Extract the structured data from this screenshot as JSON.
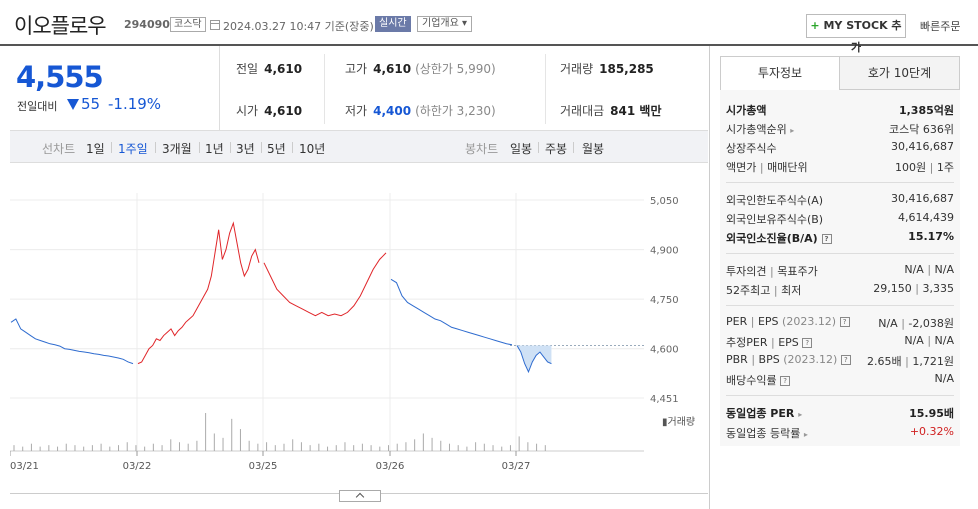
{
  "header": {
    "name": "이오플로우",
    "code": "294090",
    "market": "코스닥",
    "datetime": "2024.03.27 10:47 기준(장중)",
    "realtime": "실시간",
    "company_info": "기업개요 ▾",
    "mystock_plus": "+",
    "mystock_label": "MY STOCK 추가",
    "quick_order": "빠른주문"
  },
  "price": {
    "current": "4,555",
    "diff_label": "전일대비",
    "diff": "55",
    "rate": "-1.19%"
  },
  "info": {
    "prev_label": "전일",
    "prev": "4,610",
    "high_label": "고가",
    "high": "4,610",
    "upper": "(상한가 5,990)",
    "volume_label": "거래량",
    "volume": "185,285",
    "open_label": "시가",
    "open": "4,610",
    "low_label": "저가",
    "low": "4,400",
    "lower": "(하한가 3,230)",
    "amount_label": "거래대금",
    "amount": "841 백만"
  },
  "period_bar": {
    "line_chart": "선차트",
    "periods": [
      "1일",
      "1주일",
      "3개월",
      "1년",
      "3년",
      "5년",
      "10년"
    ],
    "active_period": "1주일",
    "candle_chart": "봉차트",
    "candles": [
      "일봉",
      "주봉",
      "월봉"
    ]
  },
  "chart_data": {
    "type": "line",
    "y_ticks": [
      "5,050",
      "4,900",
      "4,750",
      "4,600",
      "4,451"
    ],
    "ylim": [
      4451,
      5050
    ],
    "x_ticks": [
      "03/21",
      "03/22",
      "03/25",
      "03/26",
      "03/27"
    ],
    "reference_price": 4610,
    "volume_label": "거래량",
    "colors": {
      "up": "#e0262a",
      "down": "#2f6ccf",
      "fill": "#cfe1f5"
    },
    "series": [
      {
        "color": "down",
        "day": 0,
        "values": [
          4680,
          4690,
          4660,
          4650,
          4640,
          4630,
          4625,
          4620,
          4615,
          4612,
          4608,
          4600,
          4598,
          4595,
          4592,
          4590,
          4588,
          4585,
          4583,
          4580,
          4578,
          4575,
          4572,
          4568,
          4560,
          4555
        ]
      },
      {
        "color": "up",
        "day": 1,
        "values": [
          4555,
          4560,
          4580,
          4600,
          4610,
          4630,
          4625,
          4640,
          4650,
          4660,
          4640,
          4655,
          4665,
          4680,
          4690,
          4700,
          4720,
          4740,
          4760,
          4780,
          4820,
          4890,
          4960,
          4870,
          4900,
          4950,
          4980,
          4920,
          4860,
          4820,
          4840,
          4880,
          4900,
          4860
        ]
      },
      {
        "color": "up",
        "day": 2,
        "values": [
          4860,
          4820,
          4780,
          4760,
          4740,
          4730,
          4720,
          4710,
          4700,
          4710,
          4700,
          4705,
          4700,
          4710,
          4730,
          4760,
          4800,
          4840,
          4870,
          4890
        ]
      },
      {
        "color": "down",
        "day": 3,
        "values": [
          4810,
          4800,
          4760,
          4740,
          4730,
          4720,
          4710,
          4700,
          4690,
          4685,
          4675,
          4665,
          4660,
          4655,
          4650,
          4645,
          4640,
          4635,
          4630,
          4625,
          4620,
          4615,
          4612
        ]
      },
      {
        "color": "down",
        "day": 4,
        "values": [
          4610,
          4590,
          4555,
          4530,
          4560,
          4580,
          4590,
          4575,
          4560,
          4555
        ]
      }
    ],
    "volumes": [
      4,
      3,
      5,
      3,
      4,
      3,
      5,
      4,
      3,
      4,
      5,
      3,
      4,
      6,
      4,
      3,
      5,
      4,
      8,
      6,
      5,
      7,
      26,
      12,
      9,
      22,
      15,
      7,
      5,
      6,
      4,
      5,
      8,
      6,
      4,
      5,
      3,
      4,
      6,
      4,
      5,
      4,
      3,
      4,
      5,
      6,
      8,
      12,
      9,
      7,
      5,
      4,
      3,
      6,
      5,
      4,
      3,
      4,
      10,
      6,
      5,
      4
    ]
  },
  "right_panel": {
    "tab_invest": "투자정보",
    "tab_orderbook": "호가 10단계",
    "market_cap_label": "시가총액",
    "market_cap": "1,385억원",
    "market_cap_rank_label": "시가총액순위",
    "market_cap_rank": "코스닥 636위",
    "shares_label": "상장주식수",
    "shares": "30,416,687",
    "par_label": "액면가",
    "unit_label": "매매단위",
    "par": "100원",
    "unit": "1주",
    "foreign_limit_label": "외국인한도주식수(A)",
    "foreign_limit": "30,416,687",
    "foreign_hold_label": "외국인보유주식수(B)",
    "foreign_hold": "4,614,439",
    "foreign_rate_label": "외국인소진율(B/A)",
    "foreign_rate": "15.17%",
    "opinion_label": "투자의견",
    "target_label": "목표주가",
    "opinion": "N/A",
    "target": "N/A",
    "w52_label": "52주최고",
    "w52_low_label": "최저",
    "w52_high": "29,150",
    "w52_low": "3,335",
    "per_label": "PER",
    "eps_label": "EPS",
    "per_year": "(2023.12)",
    "per": "N/A",
    "eps": "-2,038원",
    "est_per_label": "추정PER",
    "est_eps_label": "EPS",
    "est_per": "N/A",
    "est_eps": "N/A",
    "pbr_label": "PBR",
    "bps_label": "BPS",
    "pbr_year": "(2023.12)",
    "pbr": "2.65배",
    "bps": "1,721원",
    "div_label": "배당수익률",
    "div": "N/A",
    "sector_per_label": "동일업종 PER",
    "sector_per": "15.95배",
    "sector_rate_label": "동일업종 등락률",
    "sector_rate": "+0.32%"
  }
}
